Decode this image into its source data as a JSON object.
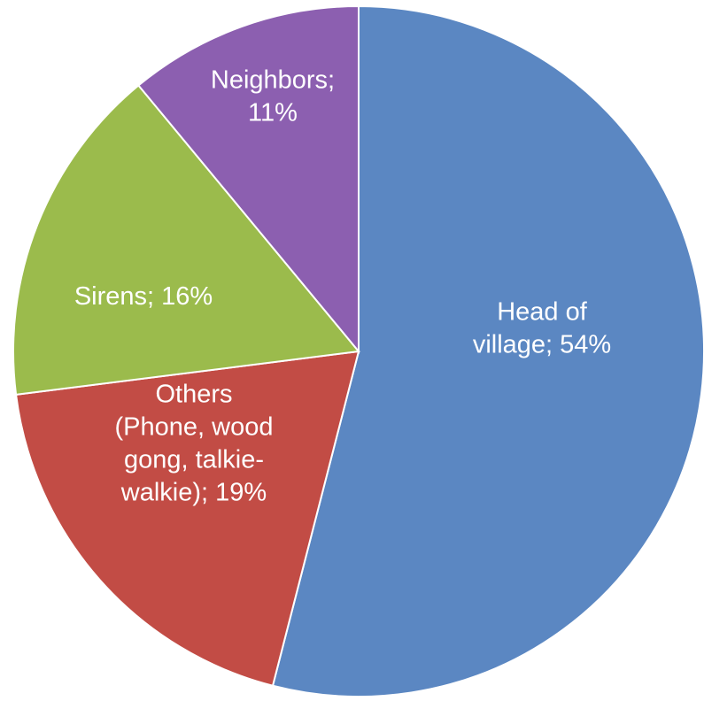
{
  "chart_data": {
    "type": "pie",
    "slices": [
      {
        "category": "Head of village",
        "value": 54,
        "color": "#5B87C2",
        "label_lines": [
          "Head of",
          "village; 54%"
        ]
      },
      {
        "category": "Others (Phone, wood gong, talkie-walkie)",
        "value": 19,
        "color": "#C24C45",
        "label_lines": [
          "Others",
          "(Phone, wood",
          "gong, talkie-",
          "walkie); 19%"
        ]
      },
      {
        "category": "Sirens",
        "value": 16,
        "color": "#9BBB4C",
        "label_lines": [
          "Sirens; 16%"
        ]
      },
      {
        "category": "Neighbors",
        "value": 11,
        "color": "#8C5FB0",
        "label_lines": [
          "Neighbors;",
          "11%"
        ]
      }
    ],
    "start": "top",
    "direction": "clockwise",
    "legend": "none"
  }
}
